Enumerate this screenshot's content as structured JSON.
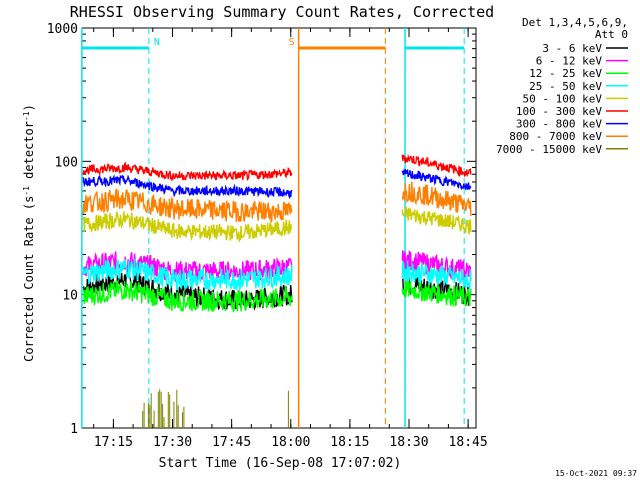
{
  "chart_data": {
    "type": "line",
    "title": "RHESSI Observing Summary Count Rates, Corrected",
    "xlabel": "Start Time (16-Sep-08 17:07:02)",
    "ylabel": "Corrected Count Rate (s⁻¹ detector⁻¹)",
    "yscale": "log",
    "ylim": [
      1,
      1000
    ],
    "xlim": [
      "17:07:02",
      "18:47:00"
    ],
    "x_ticks": [
      "17:15",
      "17:30",
      "17:45",
      "18:00",
      "18:15",
      "18:30",
      "18:45"
    ],
    "y_ticks": [
      "1",
      "10",
      "100",
      "1000"
    ],
    "grid": false,
    "legend_title": [
      "Det 1,3,4,5,6,9,",
      "Att 0"
    ],
    "legend_position": "right",
    "timestamp": "15-Oct-2021 09:37",
    "data_gap": [
      "18:01",
      "18:28"
    ],
    "flag_markers": [
      {
        "label": "N",
        "color": "#00e5ee",
        "start": "17:07",
        "end": "17:24"
      },
      {
        "label": "",
        "color": "#00e5ee",
        "start": "18:29",
        "end": "18:44"
      },
      {
        "label": "S",
        "color": "#ff7f00",
        "start": "18:02",
        "end": "18:24"
      }
    ],
    "series": [
      {
        "name": "3 - 6 keV",
        "color": "#000000",
        "left": [
          [
            17.1,
            11
          ],
          [
            17.3,
            13
          ],
          [
            17.5,
            10
          ],
          [
            17.8,
            9
          ],
          [
            18.0,
            10
          ]
        ],
        "right": [
          [
            18.5,
            12
          ],
          [
            18.75,
            10
          ]
        ]
      },
      {
        "name": "6 - 12 keV",
        "color": "#ff00ff",
        "left": [
          [
            17.1,
            16
          ],
          [
            17.3,
            18
          ],
          [
            17.5,
            15
          ],
          [
            17.8,
            15
          ],
          [
            18.0,
            16
          ]
        ],
        "right": [
          [
            18.5,
            18
          ],
          [
            18.75,
            15
          ]
        ]
      },
      {
        "name": "12 - 25 keV",
        "color": "#00ff00",
        "left": [
          [
            17.1,
            9.5
          ],
          [
            17.3,
            11
          ],
          [
            17.5,
            9
          ],
          [
            17.8,
            9
          ],
          [
            18.0,
            9.5
          ]
        ],
        "right": [
          [
            18.5,
            11
          ],
          [
            18.75,
            9.5
          ]
        ]
      },
      {
        "name": "25 - 50 keV",
        "color": "#00ffff",
        "left": [
          [
            17.1,
            14
          ],
          [
            17.3,
            16
          ],
          [
            17.5,
            13
          ],
          [
            17.8,
            13
          ],
          [
            18.0,
            14
          ]
        ],
        "right": [
          [
            18.5,
            15
          ],
          [
            18.75,
            13
          ]
        ]
      },
      {
        "name": "50 - 100 keV",
        "color": "#cccc00",
        "left": [
          [
            17.1,
            33
          ],
          [
            17.3,
            37
          ],
          [
            17.5,
            30
          ],
          [
            17.8,
            29
          ],
          [
            18.0,
            32
          ]
        ],
        "right": [
          [
            18.5,
            40
          ],
          [
            18.75,
            33
          ]
        ]
      },
      {
        "name": "100 - 300 keV",
        "color": "#ff0000",
        "left": [
          [
            17.1,
            85
          ],
          [
            17.3,
            90
          ],
          [
            17.5,
            78
          ],
          [
            17.8,
            78
          ],
          [
            18.0,
            82
          ]
        ],
        "right": [
          [
            18.5,
            105
          ],
          [
            18.75,
            82
          ]
        ]
      },
      {
        "name": "300 - 800 keV",
        "color": "#0000ff",
        "left": [
          [
            17.1,
            70
          ],
          [
            17.3,
            72
          ],
          [
            17.5,
            60
          ],
          [
            17.8,
            60
          ],
          [
            18.0,
            58
          ]
        ],
        "right": [
          [
            18.5,
            80
          ],
          [
            18.75,
            65
          ]
        ]
      },
      {
        "name": "800 - 7000 keV",
        "color": "#ff7f00",
        "left": [
          [
            17.1,
            48
          ],
          [
            17.3,
            52
          ],
          [
            17.5,
            44
          ],
          [
            17.8,
            42
          ],
          [
            18.0,
            42
          ]
        ],
        "right": [
          [
            18.5,
            60
          ],
          [
            18.75,
            46
          ]
        ]
      },
      {
        "name": "7000 - 15000 keV",
        "color": "#808000",
        "left": [
          [
            17.35,
            1.8
          ],
          [
            17.55,
            1.8
          ]
        ],
        "right": []
      }
    ]
  }
}
